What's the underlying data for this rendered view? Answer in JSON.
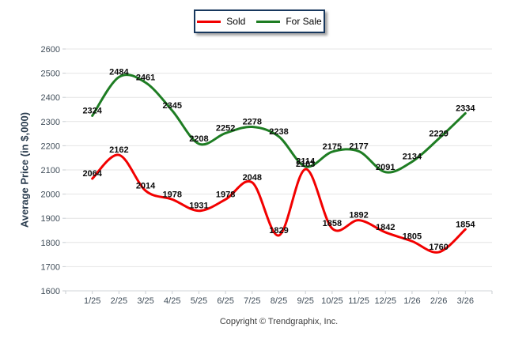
{
  "y_axis_title": "Average Price (in $,000)",
  "footer_text": "Copyright © Trendgraphix, Inc.",
  "colors": {
    "sold_line": "#f20000",
    "for_sale_line": "#1e7d23",
    "gridline": "#e4e4e4",
    "axis_line": "#d2d6da",
    "tick": "#c8cdd2",
    "axis_text": "#414e5a",
    "data_label": "#0b0b0b",
    "legend_border": "#17375d"
  },
  "chart_data": {
    "type": "line",
    "x": [
      "1/25",
      "2/25",
      "3/25",
      "4/25",
      "5/25",
      "6/25",
      "7/25",
      "8/25",
      "9/25",
      "10/25",
      "11/25",
      "12/25",
      "1/26",
      "2/26",
      "3/26"
    ],
    "series": [
      {
        "name": "Sold",
        "color": "#f20000",
        "values": [
          2064,
          2162,
          2014,
          1978,
          1931,
          1978,
          2048,
          1829,
          2103,
          1858,
          1892,
          1842,
          1805,
          1760,
          1854
        ]
      },
      {
        "name": "For Sale",
        "color": "#1e7d23",
        "values": [
          2324,
          2484,
          2461,
          2345,
          2208,
          2252,
          2278,
          2238,
          2114,
          2175,
          2177,
          2091,
          2134,
          2229,
          2334
        ]
      }
    ],
    "title": "",
    "xlabel": "",
    "ylabel": "Average Price (in $,000)",
    "ylim": [
      1600,
      2600
    ],
    "ytick_step": 100,
    "grid": true,
    "smooth": true,
    "data_labels": true,
    "legend_position": "top-center"
  }
}
